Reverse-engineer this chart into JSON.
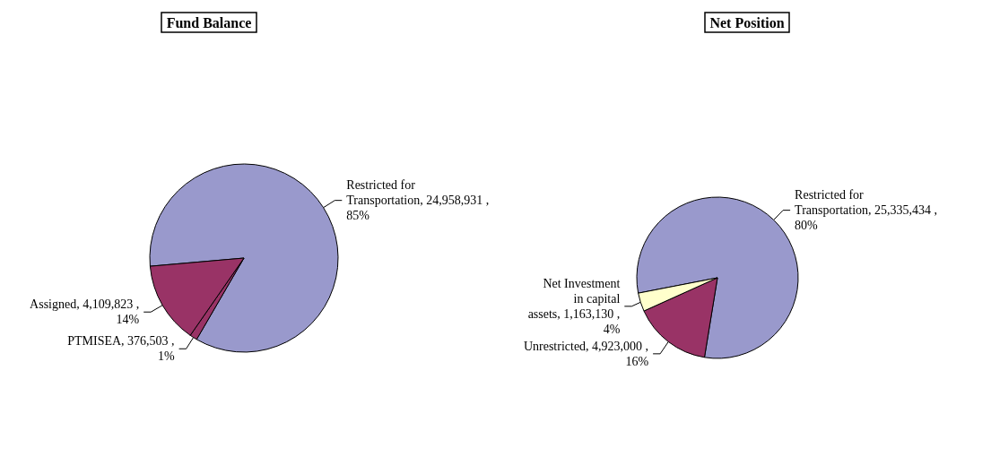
{
  "chart_data": [
    {
      "type": "pie",
      "title": "Fund Balance",
      "categories": [
        "Restricted for Transportation",
        "PTMISEA",
        "Assigned"
      ],
      "values": [
        24958931,
        376503,
        4109823
      ],
      "colors": [
        "#9999cc",
        "#993366",
        "#993366"
      ],
      "value_labels": [
        "24,958,931 , 85%",
        "376,503 , 1%",
        "4,109,823 , 14%"
      ]
    },
    {
      "type": "pie",
      "title": "Net Position",
      "categories": [
        "Restricted for Transportation",
        "Unrestricted",
        "Net Investment in capital assets"
      ],
      "values": [
        25335434,
        4923000,
        1163130
      ],
      "colors": [
        "#9999cc",
        "#993366",
        "#ffffcc"
      ],
      "value_labels": [
        "25,335,434 , 80%",
        "4,923,000 , 16%",
        "1,163,130 , 4%"
      ]
    }
  ]
}
